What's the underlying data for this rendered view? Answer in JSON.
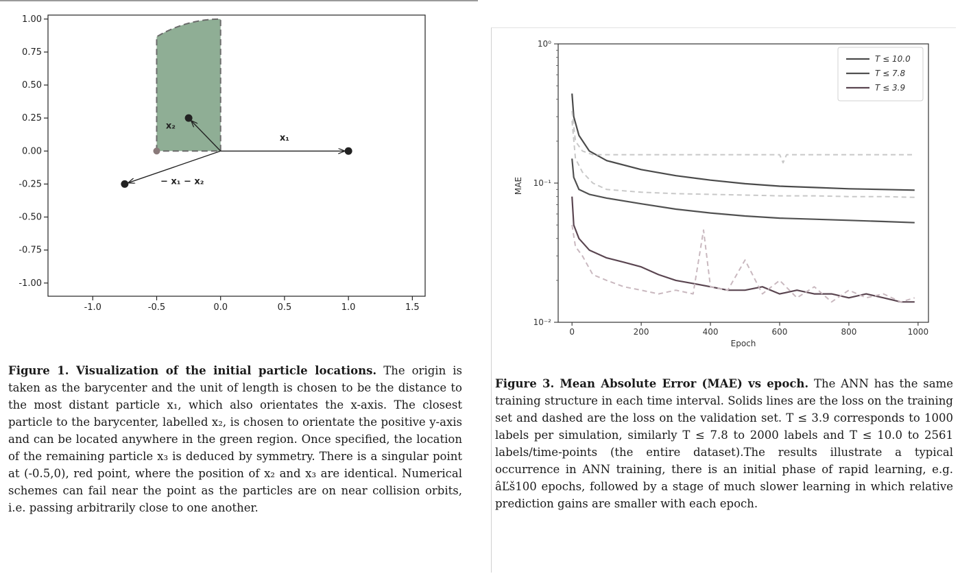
{
  "figure1": {
    "chart_data": {
      "type": "scatter",
      "x_ticks": [
        "-1.0",
        "-0.5",
        "0.0",
        "0.5",
        "1.0",
        "1.5"
      ],
      "y_ticks": [
        "1.00",
        "0.75",
        "0.50",
        "0.25",
        "0.00",
        "-0.25",
        "-0.50",
        "-0.75",
        "-1.00"
      ],
      "xlim": [
        -1.35,
        1.6
      ],
      "ylim": [
        -1.1,
        1.03
      ],
      "points": [
        {
          "label": "x1",
          "x": 1.0,
          "y": 0.0
        },
        {
          "label": "x2",
          "x": -0.25,
          "y": 0.25
        },
        {
          "label": "x3",
          "x": -0.75,
          "y": -0.25
        },
        {
          "label": "singular",
          "x": -0.5,
          "y": 0.0
        }
      ],
      "region_color": "#8fae95",
      "region": {
        "x_min": -0.5,
        "x_max": 0.0,
        "y_min": 0.0,
        "boundary": "arc of unit circle from (-0.5, 0.866) to (0, 1.0)"
      },
      "annotations": [
        "x₁",
        "x₂",
        "− x₁ − x₂"
      ],
      "grid": false
    },
    "caption_title": "Figure 1. Visualization of the initial particle locations.",
    "caption_body": "The origin is taken as the barycenter and the unit of length is chosen to be the distance to the most distant particle x₁, which also orientates the x-axis. The closest particle to the barycenter, labelled x₂, is chosen to orientate the positive y-axis and can be located anywhere in the green region. Once specified, the location of the remaining particle x₃ is deduced by symmetry. There is a singular point at (-0.5,0), red point, where the position of x₂ and x₃ are identical. Numerical schemes can fail near the point as the particles are on near collision orbits, i.e. passing arbitrarily close to one another."
  },
  "figure3": {
    "chart_data": {
      "type": "line",
      "y_scale": "log",
      "xlabel": "Epoch",
      "ylabel": "MAE",
      "xlim": [
        -40,
        1030
      ],
      "ylim": [
        0.01,
        1.0
      ],
      "x_ticks": [
        "0",
        "200",
        "400",
        "600",
        "800",
        "1000"
      ],
      "y_ticks": [
        "10⁰",
        "10⁻¹",
        "10⁻²"
      ],
      "legend_position": "top-right",
      "series": [
        {
          "name": "T ≤ 10.0",
          "style": "solid",
          "color": "#4a4a4a",
          "x": [
            0,
            5,
            20,
            50,
            100,
            200,
            300,
            400,
            500,
            600,
            700,
            800,
            900,
            990
          ],
          "y": [
            0.44,
            0.3,
            0.22,
            0.17,
            0.145,
            0.125,
            0.113,
            0.105,
            0.099,
            0.095,
            0.093,
            0.091,
            0.09,
            0.089
          ]
        },
        {
          "name": "T ≤ 7.8",
          "style": "solid",
          "color": "#505050",
          "x": [
            0,
            5,
            20,
            50,
            100,
            200,
            300,
            400,
            500,
            600,
            700,
            800,
            900,
            990
          ],
          "y": [
            0.15,
            0.11,
            0.09,
            0.083,
            0.078,
            0.071,
            0.065,
            0.061,
            0.058,
            0.056,
            0.055,
            0.054,
            0.053,
            0.052
          ]
        },
        {
          "name": "T ≤ 3.9",
          "style": "solid",
          "color": "#5a4550",
          "x": [
            0,
            5,
            20,
            50,
            100,
            150,
            200,
            250,
            300,
            350,
            400,
            450,
            500,
            550,
            600,
            650,
            700,
            750,
            800,
            850,
            900,
            950,
            990
          ],
          "y": [
            0.08,
            0.05,
            0.04,
            0.033,
            0.029,
            0.027,
            0.025,
            0.022,
            0.02,
            0.019,
            0.018,
            0.017,
            0.017,
            0.018,
            0.016,
            0.017,
            0.016,
            0.016,
            0.015,
            0.016,
            0.015,
            0.014,
            0.014
          ]
        },
        {
          "style": "dashed",
          "color": "#c8c8c8",
          "x": [
            0,
            10,
            30,
            60,
            100,
            200,
            300,
            400,
            500,
            600,
            610,
            620,
            700,
            800,
            900,
            990
          ],
          "y": [
            0.33,
            0.2,
            0.17,
            0.16,
            0.16,
            0.16,
            0.16,
            0.16,
            0.16,
            0.16,
            0.14,
            0.16,
            0.16,
            0.16,
            0.16,
            0.16
          ]
        },
        {
          "style": "dashed",
          "color": "#c8c8c8",
          "x": [
            0,
            10,
            30,
            60,
            100,
            200,
            300,
            400,
            500,
            600,
            700,
            800,
            900,
            990
          ],
          "y": [
            0.28,
            0.15,
            0.12,
            0.1,
            0.09,
            0.086,
            0.084,
            0.083,
            0.082,
            0.081,
            0.081,
            0.08,
            0.08,
            0.079
          ]
        },
        {
          "style": "dashed",
          "color": "#c9b8bf",
          "x": [
            0,
            10,
            30,
            60,
            100,
            150,
            200,
            250,
            300,
            350,
            380,
            400,
            450,
            500,
            550,
            600,
            650,
            700,
            750,
            800,
            850,
            900,
            950,
            990
          ],
          "y": [
            0.05,
            0.035,
            0.03,
            0.022,
            0.02,
            0.018,
            0.017,
            0.016,
            0.017,
            0.016,
            0.046,
            0.018,
            0.017,
            0.028,
            0.016,
            0.02,
            0.015,
            0.018,
            0.014,
            0.017,
            0.015,
            0.016,
            0.014,
            0.015
          ]
        }
      ]
    },
    "legend": [
      {
        "label": "T ≤ 10.0"
      },
      {
        "label": "T ≤ 7.8"
      },
      {
        "label": "T ≤ 3.9"
      }
    ],
    "caption_title": "Figure 3. Mean Absolute Error (MAE) vs epoch.",
    "caption_body": "The ANN has the same training structure in each time interval. Solids lines are the loss on the training set and dashed are the loss on the validation set. T ≤ 3.9 corresponds to 1000 labels per simulation, similarly T ≤ 7.8 to 2000 labels and T ≤ 10.0 to 2561 labels/time-points (the entire dataset).The results illustrate a typical occurrence in ANN training, there is an initial phase of rapid learning, e.g. âĽš100 epochs, followed by a stage of much slower learning in which relative prediction gains are smaller with each epoch."
  }
}
